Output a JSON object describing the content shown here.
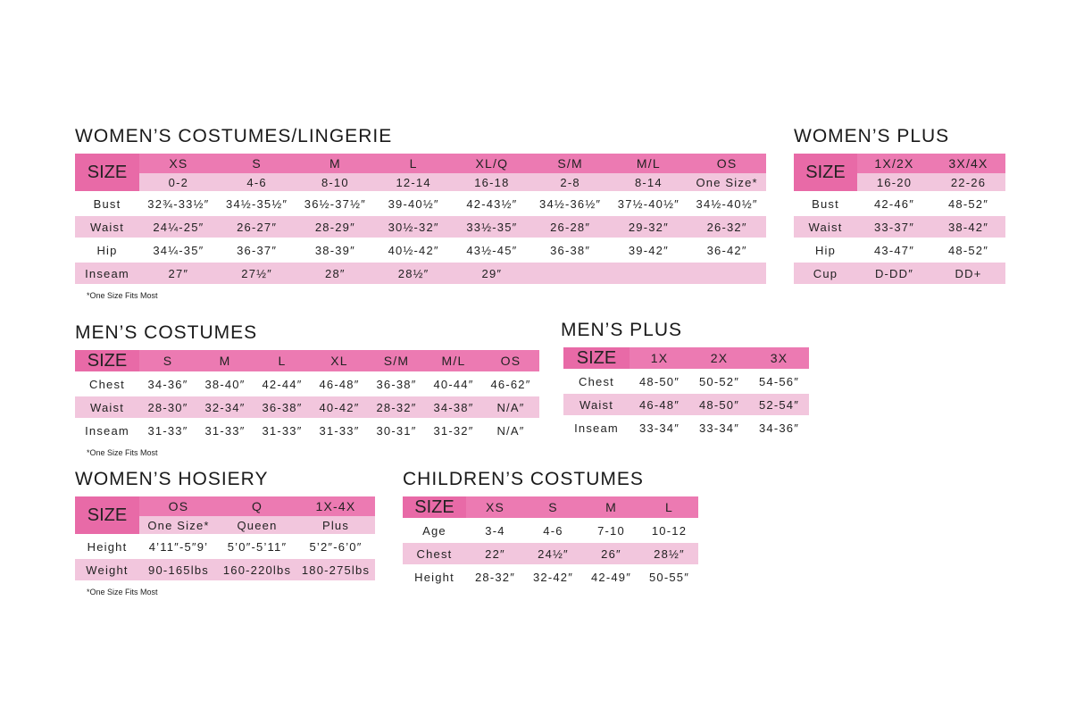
{
  "colors": {
    "header": "#ec7ab2",
    "size_cell": "#e86aa7",
    "row_pink": "#f2c6dd"
  },
  "tables": {
    "womens_costumes": {
      "title": "WOMEN’S COSTUMES/LINGERIE",
      "size_label": "SIZE",
      "headers": [
        "XS",
        "S",
        "M",
        "L",
        "XL/Q",
        "S/M",
        "M/L",
        "OS"
      ],
      "subheaders": [
        "0-2",
        "4-6",
        "8-10",
        "12-14",
        "16-18",
        "2-8",
        "8-14",
        "One Size*"
      ],
      "rows": [
        {
          "label": "Bust",
          "values": [
            "32¾-33½″",
            "34½-35½″",
            "36½-37½″",
            "39-40½″",
            "42-43½″",
            "34½-36½″",
            "37½-40½″",
            "34½-40½″"
          ]
        },
        {
          "label": "Waist",
          "values": [
            "24¼-25″",
            "26-27″",
            "28-29″",
            "30½-32″",
            "33½-35″",
            "26-28″",
            "29-32″",
            "26-32″"
          ]
        },
        {
          "label": "Hip",
          "values": [
            "34¼-35″",
            "36-37″",
            "38-39″",
            "40½-42″",
            "43½-45″",
            "36-38″",
            "39-42″",
            "36-42″"
          ]
        },
        {
          "label": "Inseam",
          "values": [
            "27″",
            "27½″",
            "28″",
            "28½″",
            "29″",
            "",
            "",
            ""
          ]
        }
      ],
      "footnote": "*One Size Fits Most"
    },
    "womens_plus": {
      "title": "WOMEN’S PLUS",
      "size_label": "SIZE",
      "headers": [
        "1X/2X",
        "3X/4X"
      ],
      "subheaders": [
        "16-20",
        "22-26"
      ],
      "rows": [
        {
          "label": "Bust",
          "values": [
            "42-46″",
            "48-52″"
          ]
        },
        {
          "label": "Waist",
          "values": [
            "33-37″",
            "38-42″"
          ]
        },
        {
          "label": "Hip",
          "values": [
            "43-47″",
            "48-52″"
          ]
        },
        {
          "label": "Cup",
          "values": [
            "D-DD″",
            "DD+"
          ]
        }
      ]
    },
    "mens_costumes": {
      "title": "MEN’S COSTUMES",
      "size_label": "SIZE",
      "headers": [
        "S",
        "M",
        "L",
        "XL",
        "S/M",
        "M/L",
        "OS"
      ],
      "rows": [
        {
          "label": "Chest",
          "values": [
            "34-36″",
            "38-40″",
            "42-44″",
            "46-48″",
            "36-38″",
            "40-44″",
            "46-62″"
          ]
        },
        {
          "label": "Waist",
          "values": [
            "28-30″",
            "32-34″",
            "36-38″",
            "40-42″",
            "28-32″",
            "34-38″",
            "N/A″"
          ]
        },
        {
          "label": "Inseam",
          "values": [
            "31-33″",
            "31-33″",
            "31-33″",
            "31-33″",
            "30-31″",
            "31-32″",
            "N/A″"
          ]
        }
      ],
      "footnote": "*One Size Fits Most"
    },
    "mens_plus": {
      "title": "MEN’S PLUS",
      "size_label": "SIZE",
      "headers": [
        "1X",
        "2X",
        "3X"
      ],
      "rows": [
        {
          "label": "Chest",
          "values": [
            "48-50″",
            "50-52″",
            "54-56″"
          ]
        },
        {
          "label": "Waist",
          "values": [
            "46-48″",
            "48-50″",
            "52-54″"
          ]
        },
        {
          "label": "Inseam",
          "values": [
            "33-34″",
            "33-34″",
            "34-36″"
          ]
        }
      ]
    },
    "womens_hosiery": {
      "title": "WOMEN’S HOSIERY",
      "size_label": "SIZE",
      "headers": [
        "OS",
        "Q",
        "1X-4X"
      ],
      "subheaders": [
        "One Size*",
        "Queen",
        "Plus"
      ],
      "rows": [
        {
          "label": "Height",
          "values": [
            "4’11″-5″9’",
            "5’0″-5’11″",
            "5’2″-6’0″"
          ]
        },
        {
          "label": "Weight",
          "values": [
            "90-165lbs",
            "160-220lbs",
            "180-275lbs"
          ]
        }
      ],
      "footnote": "*One Size Fits Most"
    },
    "childrens_costumes": {
      "title": "CHILDREN’S COSTUMES",
      "size_label": "SIZE",
      "headers": [
        "XS",
        "S",
        "M",
        "L"
      ],
      "rows": [
        {
          "label": "Age",
          "values": [
            "3-4",
            "4-6",
            "7-10",
            "10-12"
          ]
        },
        {
          "label": "Chest",
          "values": [
            "22″",
            "24½″",
            "26″",
            "28½″"
          ]
        },
        {
          "label": "Height",
          "values": [
            "28-32″",
            "32-42″",
            "42-49″",
            "50-55″"
          ]
        }
      ]
    }
  }
}
